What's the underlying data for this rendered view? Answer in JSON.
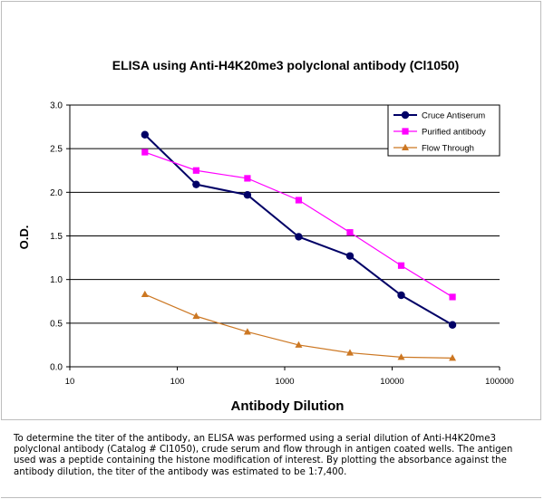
{
  "chart_data": {
    "type": "line",
    "title": "ELISA using Anti-H4K20me3 polyclonal antibody (Cl1050)",
    "xlabel": "Antibody Dilution",
    "ylabel": "O.D.",
    "x_scale": "log",
    "xlim": [
      10,
      100000
    ],
    "ylim": [
      0,
      3.0
    ],
    "x_ticks": [
      "10",
      "100",
      "1000",
      "10000",
      "100000"
    ],
    "y_ticks": [
      "0.0",
      "0.5",
      "1.0",
      "1.5",
      "2.0",
      "2.5",
      "3.0"
    ],
    "grid": "horizontal",
    "legend_position": "top-right",
    "x": [
      50,
      150,
      450,
      1350,
      4050,
      12150,
      36450
    ],
    "series": [
      {
        "name": "Cruce Antiserum",
        "color": "#000066",
        "marker": "circle",
        "values": [
          2.66,
          2.09,
          1.97,
          1.49,
          1.27,
          0.82,
          0.48
        ]
      },
      {
        "name": "Purified antibody",
        "color": "#FF00FF",
        "marker": "square",
        "values": [
          2.46,
          2.25,
          2.16,
          1.91,
          1.54,
          1.16,
          0.8
        ]
      },
      {
        "name": "Flow Through",
        "color": "#CC7722",
        "marker": "triangle",
        "values": [
          0.83,
          0.58,
          0.4,
          0.25,
          0.16,
          0.11,
          0.1
        ]
      }
    ]
  },
  "caption": "To determine the titer of the antibody, an ELISA was performed using a serial dilution of Anti-H4K20me3 polyclonal antibody (Catalog # Cl1050), crude serum and flow through in antigen coated wells. The antigen used was a peptide containing the histone modification of interest. By plotting the absorbance against the antibody dilution, the titer of the antibody was estimated to be 1:7,400."
}
